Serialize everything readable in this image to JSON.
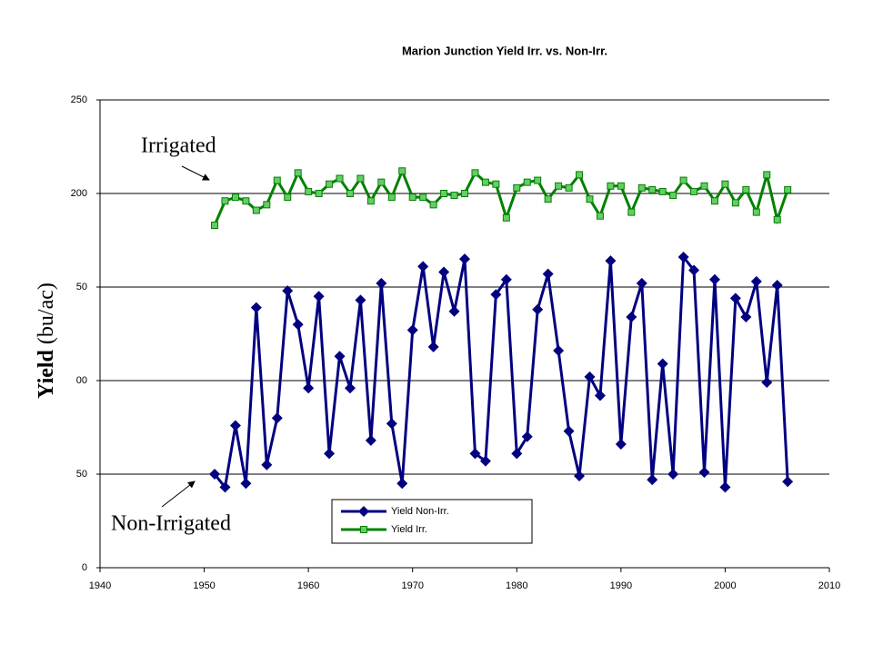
{
  "chart_data": {
    "type": "line",
    "title": "Marion Junction Yield Irr. vs. Non-Irr.",
    "y_label": [
      "Yield",
      "(bu/ac)"
    ],
    "annotations": [
      "Irrigated",
      "Non-Irrigated"
    ],
    "x": [
      1951,
      1952,
      1953,
      1954,
      1955,
      1956,
      1957,
      1958,
      1959,
      1960,
      1961,
      1962,
      1963,
      1964,
      1965,
      1966,
      1967,
      1968,
      1969,
      1970,
      1971,
      1972,
      1973,
      1974,
      1975,
      1976,
      1977,
      1978,
      1979,
      1980,
      1981,
      1982,
      1983,
      1984,
      1985,
      1986,
      1987,
      1988,
      1989,
      1990,
      1991,
      1992,
      1993,
      1994,
      1995,
      1996,
      1997,
      1998,
      1999,
      2000,
      2001,
      2002,
      2003,
      2004,
      2005,
      2006
    ],
    "series": [
      {
        "name": "Yield Non-Irr.",
        "color": "#000080",
        "marker": "diamond",
        "values": [
          50,
          43,
          76,
          45,
          139,
          55,
          80,
          148,
          130,
          96,
          145,
          61,
          113,
          96,
          143,
          68,
          152,
          77,
          45,
          127,
          161,
          118,
          158,
          137,
          165,
          61,
          57,
          146,
          154,
          61,
          70,
          138,
          157,
          116,
          73,
          49,
          102,
          92,
          164,
          66,
          134,
          152,
          47,
          109,
          50,
          166,
          159,
          51,
          154,
          43,
          144,
          134,
          153,
          99,
          151,
          46
        ]
      },
      {
        "name": "Yield Irr.",
        "color": "#008000",
        "marker": "square",
        "values": [
          183,
          196,
          198,
          196,
          191,
          194,
          207,
          198,
          211,
          201,
          200,
          205,
          208,
          200,
          208,
          196,
          206,
          198,
          212,
          198,
          198,
          194,
          200,
          199,
          200,
          211,
          206,
          205,
          187,
          203,
          206,
          207,
          197,
          204,
          203,
          210,
          197,
          188,
          204,
          204,
          190,
          203,
          202,
          201,
          199,
          207,
          201,
          204,
          196,
          205,
          195,
          202,
          190,
          210,
          186,
          202
        ]
      }
    ],
    "xlim": [
      1940,
      2010
    ],
    "xticks": [
      1940,
      1950,
      1960,
      1970,
      1980,
      1990,
      2000,
      2010
    ],
    "ylim": [
      0,
      250
    ],
    "yticks": [
      0,
      {
        "value": 50,
        "label": "50"
      },
      {
        "value": 100,
        "label": "00"
      },
      {
        "value": 150,
        "label": "50"
      },
      200,
      250
    ],
    "grid": true
  }
}
